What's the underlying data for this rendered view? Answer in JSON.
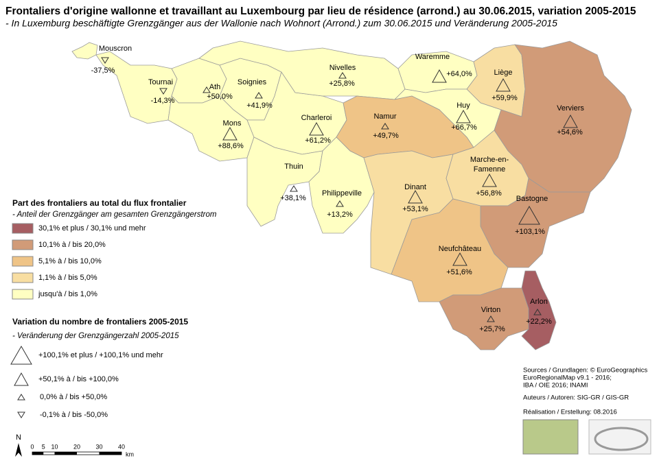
{
  "header": {
    "title": "Frontaliers d'origine wallonne et travaillant au Luxembourg par lieu de résidence (arrond.) au 30.06.2015, variation 2005-2015",
    "subtitle": "- In Luxemburg beschäftigte Grenzgänger aus der Wallonie nach Wohnort (Arrond.) zum 30.06.2015 und Veränderung 2005-2015"
  },
  "share_legend": {
    "title": "Part des frontaliers au total du flux frontalier",
    "subtitle": "- Anteil der Grenzgänger am gesamten Grenzgängerstrom",
    "classes": [
      {
        "label": "30,1% et plus / 30,1% und mehr",
        "color": "#a65e62"
      },
      {
        "label": "10,1% à / bis 20,0%",
        "color": "#d19b78"
      },
      {
        "label": "5,1% à / bis 10,0%",
        "color": "#efc487"
      },
      {
        "label": "1,1% à / bis 5,0%",
        "color": "#f8dea2"
      },
      {
        "label": "jusqu'à / bis 1,0%",
        "color": "#ffffc2"
      }
    ]
  },
  "variation_legend": {
    "title": "Variation du nombre de frontaliers 2005-2015",
    "subtitle": "- Veränderung der Grenzgängerzahl 2005-2015",
    "classes": [
      {
        "label": "+100,1% et plus / +100,1% und mehr"
      },
      {
        "label": "+50,1% à / bis +100,0%"
      },
      {
        "label": "0,0% à / bis +50,0%"
      },
      {
        "label": "-0,1% à / bis -50,0%"
      }
    ]
  },
  "regions": [
    {
      "name": "Mouscron",
      "variation": "-37,5%",
      "share_class": 4,
      "variation_class": 3
    },
    {
      "name": "Tournai",
      "variation": "-14,3%",
      "share_class": 4,
      "variation_class": 3
    },
    {
      "name": "Ath",
      "variation": "+50,0%",
      "share_class": 4,
      "variation_class": 2
    },
    {
      "name": "Soignies",
      "variation": "+41,9%",
      "share_class": 4,
      "variation_class": 2
    },
    {
      "name": "Mons",
      "variation": "+88,6%",
      "share_class": 4,
      "variation_class": 1
    },
    {
      "name": "Charleroi",
      "variation": "+61,2%",
      "share_class": 4,
      "variation_class": 1
    },
    {
      "name": "Thuin",
      "variation": "+38,1%",
      "share_class": 4,
      "variation_class": 2
    },
    {
      "name": "Philippeville",
      "variation": "+13,2%",
      "share_class": 4,
      "variation_class": 2
    },
    {
      "name": "Nivelles",
      "variation": "+25,8%",
      "share_class": 4,
      "variation_class": 2
    },
    {
      "name": "Waremme",
      "variation": "+64,0%",
      "share_class": 4,
      "variation_class": 1
    },
    {
      "name": "Liège",
      "variation": "+59,9%",
      "share_class": 3,
      "variation_class": 1
    },
    {
      "name": "Huy",
      "variation": "+66,7%",
      "share_class": 4,
      "variation_class": 1
    },
    {
      "name": "Namur",
      "variation": "+49,7%",
      "share_class": 2,
      "variation_class": 2
    },
    {
      "name": "Verviers",
      "variation": "+54,6%",
      "share_class": 1,
      "variation_class": 1
    },
    {
      "name": "Dinant",
      "variation": "+53,1%",
      "share_class": 3,
      "variation_class": 1
    },
    {
      "name": [
        "Marche-en-",
        "Famenne"
      ],
      "variation": "+56,8%",
      "share_class": 3,
      "variation_class": 1
    },
    {
      "name": "Bastogne",
      "variation": "+103,1%",
      "share_class": 1,
      "variation_class": 0
    },
    {
      "name": "Neufchâteau",
      "variation": "+51,6%",
      "share_class": 2,
      "variation_class": 1
    },
    {
      "name": "Virton",
      "variation": "+25,7%",
      "share_class": 1,
      "variation_class": 2
    },
    {
      "name": "Arlon",
      "variation": "+22,2%",
      "share_class": 0,
      "variation_class": 2
    }
  ],
  "scale_bar": {
    "north": "N",
    "ticks": [
      0,
      5,
      10,
      20,
      30,
      40
    ],
    "unit": "km"
  },
  "sources": [
    "Sources / Grundlagen: © EuroGeographics",
    "EuroRegionalMap v9.1 - 2016;",
    "IBA / OIE 2016; INAMI",
    "Auteurs / Autoren: SIG-GR / GIS-GR",
    "Réalisation / Erstellung: 08.2016"
  ]
}
